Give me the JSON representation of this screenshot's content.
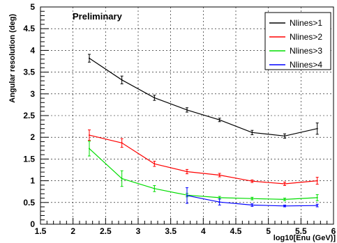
{
  "chart_data": {
    "type": "line",
    "title": "",
    "annotation": "Preliminary",
    "xlabel": "log10[Enu (GeV)]",
    "ylabel": "Angular resolution (deg)",
    "xlim": [
      1.5,
      6.0
    ],
    "ylim": [
      0,
      5
    ],
    "x_ticks": [
      "1.5",
      "2",
      "2.5",
      "3",
      "3.5",
      "4",
      "4.5",
      "5",
      "5.5",
      "6"
    ],
    "y_ticks": [
      "0",
      "0.5",
      "1",
      "1.5",
      "2",
      "2.5",
      "3",
      "3.5",
      "4",
      "4.5",
      "5"
    ],
    "x_tick_values": [
      1.5,
      2,
      2.5,
      3,
      3.5,
      4,
      4.5,
      5,
      5.5,
      6
    ],
    "y_tick_values": [
      0,
      0.5,
      1,
      1.5,
      2,
      2.5,
      3,
      3.5,
      4,
      4.5,
      5
    ],
    "grid": true,
    "legend_position": "top-right",
    "series": [
      {
        "name": "Nlines>1",
        "color": "#000000",
        "x": [
          2.25,
          2.75,
          3.25,
          3.75,
          4.25,
          4.75,
          5.25,
          5.75
        ],
        "y": [
          3.82,
          3.32,
          2.91,
          2.63,
          2.4,
          2.11,
          2.03,
          2.2
        ],
        "err": [
          0.09,
          0.09,
          0.06,
          0.05,
          0.04,
          0.05,
          0.05,
          0.13
        ]
      },
      {
        "name": "Nlines>2",
        "color": "#ff0000",
        "x": [
          2.25,
          2.75,
          3.25,
          3.75,
          4.25,
          4.75,
          5.25,
          5.75
        ],
        "y": [
          2.05,
          1.87,
          1.39,
          1.21,
          1.13,
          0.99,
          0.93,
          1.0
        ],
        "err": [
          0.12,
          0.1,
          0.06,
          0.05,
          0.04,
          0.03,
          0.04,
          0.08
        ]
      },
      {
        "name": "Nlines>3",
        "color": "#00dd00",
        "x": [
          2.25,
          2.75,
          3.25,
          3.75,
          4.25,
          4.75,
          5.25,
          5.75
        ],
        "y": [
          1.74,
          1.05,
          0.82,
          0.67,
          0.61,
          0.59,
          0.57,
          0.61
        ],
        "err": [
          0.17,
          0.18,
          0.07,
          0.04,
          0.03,
          0.03,
          0.03,
          0.07
        ]
      },
      {
        "name": "Nlines>4",
        "color": "#0000ff",
        "x": [
          3.75,
          4.25,
          4.75,
          5.25,
          5.75
        ],
        "y": [
          0.66,
          0.51,
          0.44,
          0.42,
          0.43
        ],
        "err": [
          0.18,
          0.07,
          0.03,
          0.02,
          0.03
        ]
      }
    ]
  }
}
